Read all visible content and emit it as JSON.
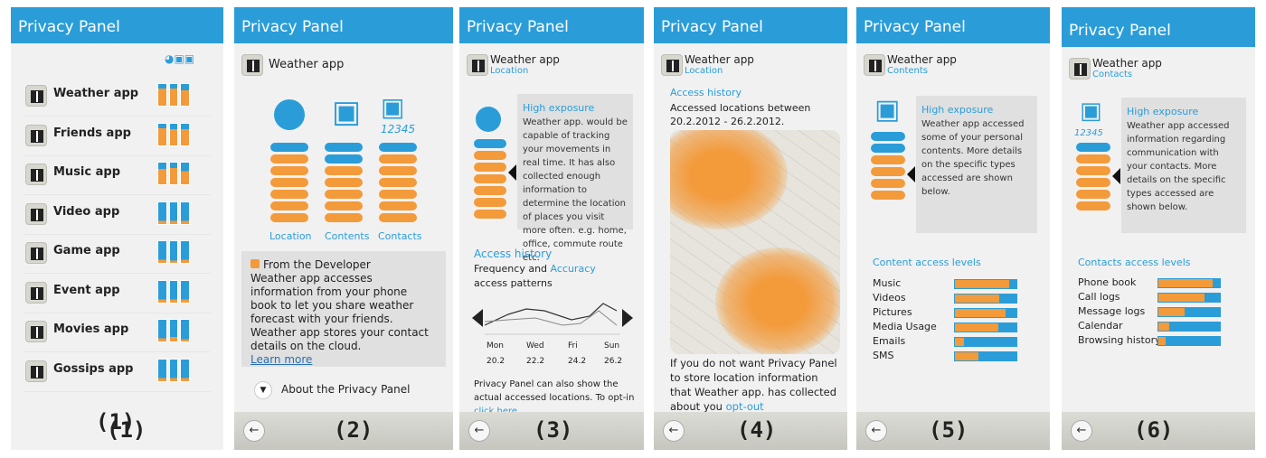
{
  "panels": [
    {
      "title": "Privacy Panel",
      "label": "(1)",
      "back": "←",
      "apps": [
        "Weather app",
        "Friends app",
        "Music app",
        "Video app",
        "Game app",
        "Event app",
        "Movies app",
        "Gossips app"
      ],
      "levels": [
        [
          0.2,
          0.2,
          0.3
        ],
        [
          0.2,
          0.25,
          0.25
        ],
        [
          0.3,
          0.25,
          0.4
        ],
        [
          0.85,
          0.85,
          0.85
        ],
        [
          0.85,
          0.9,
          0.85
        ],
        [
          0.85,
          0.85,
          0.85
        ],
        [
          0.85,
          0.8,
          0.9
        ],
        [
          0.85,
          0.85,
          0.85
        ]
      ]
    },
    {
      "title": "Privacy Panel",
      "label": "(2)",
      "back": "←",
      "app": "Weather app",
      "cats": [
        "Location",
        "Contents",
        "Contacts"
      ],
      "dev_title": "From the Developer",
      "dev_text": "Weather app accesses information from your phone book to let you share weather forecast with your friends. Weather app stores your contact details on the cloud.",
      "learn": "Learn more",
      "about": "About the Privacy Panel",
      "contacts_badge": "12345"
    },
    {
      "title": "Privacy Panel",
      "label": "(3)",
      "back": "←",
      "app": "Weather app",
      "sub": "Location",
      "exp_title": "High exposure",
      "exp_text": "Weather app. would be capable of tracking your movements in real time. It has also collected enough information to determine the location of places you visit more often.  e.g. home, office, commute route etc.",
      "hist_title": "Access history",
      "hist_text_a": "Frequency and",
      "hist_text_b": "Accuracy",
      "hist_text_c": "access patterns",
      "days": [
        "Mon",
        "Wed",
        "Fri",
        "Sun"
      ],
      "dates": [
        "20.2",
        "22.2",
        "24.2",
        "26.2"
      ],
      "note": "Privacy Panel can also show the actual accessed locations. To opt-in",
      "note_link": "click here"
    },
    {
      "title": "Privacy Panel",
      "label": "(4)",
      "back": "←",
      "app": "Weather app",
      "sub": "Location",
      "hist_title": "Access history",
      "hist_text": "Accessed locations between 20.2.2012 - 26.2.2012.",
      "note": "If you do not want Privacy Panel to store location information that Weather app. has collected about you",
      "opt": "opt-out"
    },
    {
      "title": "Privacy Panel",
      "label": "(5)",
      "back": "←",
      "app": "Weather app",
      "sub": "Contents",
      "exp_title": "High exposure",
      "exp_text": "Weather app accessed some of your personal contents. More details on the specific types accessed are shown below.",
      "levels_title": "Content access levels",
      "items": [
        {
          "name": "Music",
          "value": 0.88
        },
        {
          "name": "Videos",
          "value": 0.72
        },
        {
          "name": "Pictures",
          "value": 0.82
        },
        {
          "name": "Media Usage",
          "value": 0.7
        },
        {
          "name": "Emails",
          "value": 0.15
        },
        {
          "name": "SMS",
          "value": 0.38
        }
      ]
    },
    {
      "title": "Privacy Panel",
      "label": "(6)",
      "back": "←",
      "app": "Weather app",
      "sub": "Contacts",
      "exp_title": "High exposure",
      "exp_text": "Weather app accessed information regarding communication with your contacts. More details on the specific types accessed are shown below.",
      "levels_title": "Contacts access levels",
      "contacts_badge": "12345",
      "items": [
        {
          "name": "Phone book",
          "value": 0.88
        },
        {
          "name": "Call logs",
          "value": 0.75
        },
        {
          "name": "Message logs",
          "value": 0.42
        },
        {
          "name": "Calendar",
          "value": 0.18
        },
        {
          "name": "Browsing history",
          "value": 0.12
        }
      ]
    }
  ]
}
